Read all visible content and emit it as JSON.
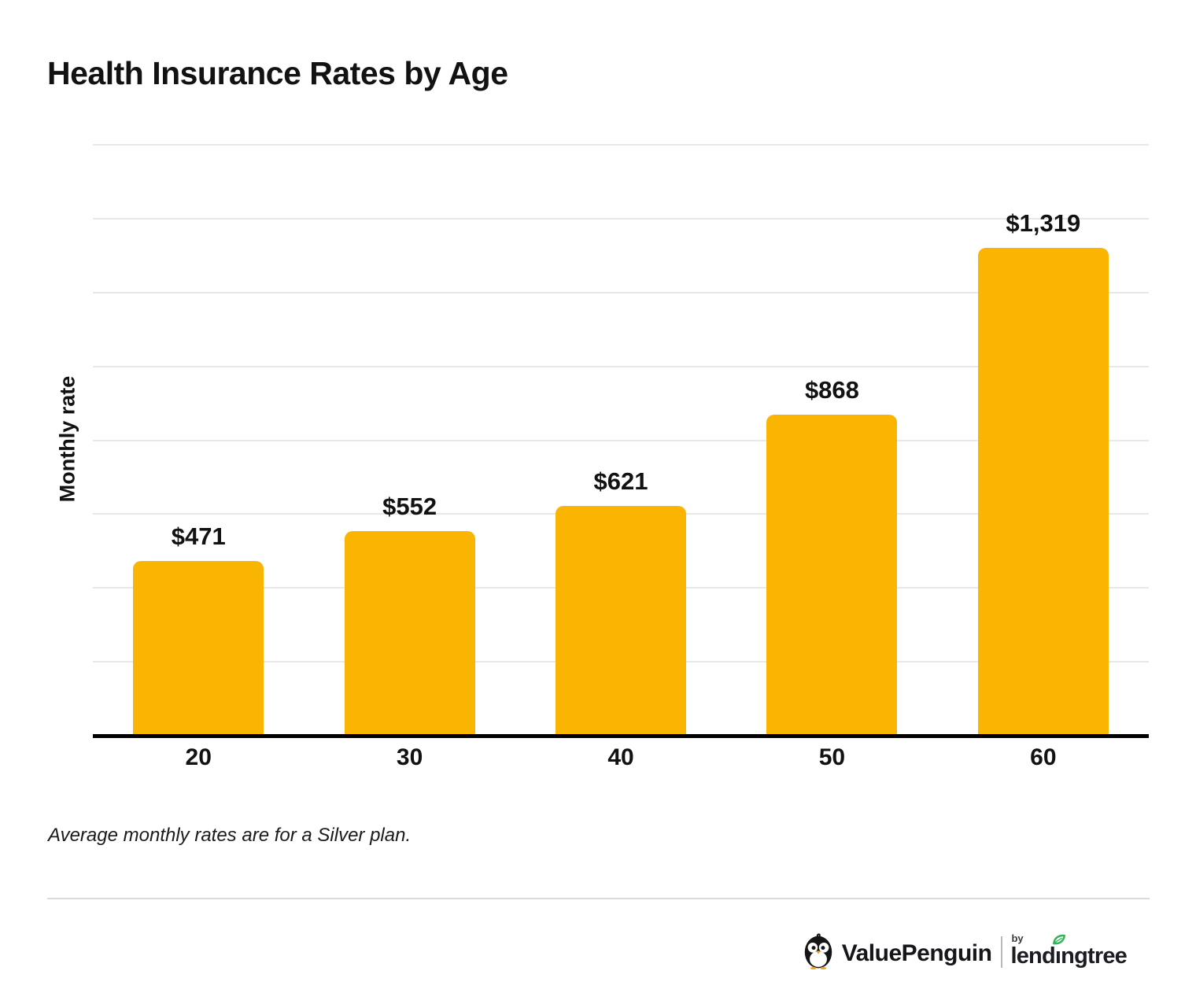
{
  "title": "Health Insurance Rates by Age",
  "chart_data": {
    "type": "bar",
    "categories": [
      "20",
      "30",
      "40",
      "50",
      "60"
    ],
    "values": [
      471,
      552,
      621,
      868,
      1319
    ],
    "value_labels": [
      "$471",
      "$552",
      "$621",
      "$868",
      "$1,319"
    ],
    "title": "Health Insurance Rates by Age",
    "xlabel": "",
    "ylabel": "Monthly rate",
    "ylim": [
      0,
      1600
    ],
    "gridline_step": 200,
    "grid": true,
    "legend": "none",
    "bar_color": "#FAB402"
  },
  "footnote": "Average monthly rates are for a Silver plan.",
  "branding": {
    "valuepenguin": "ValuePenguin",
    "by": "by",
    "lendingtree_pre": "lend",
    "lendingtree_i": "ı",
    "lendingtree_post": "ngtree"
  },
  "colors": {
    "bar": "#FAB402",
    "gridline": "#E8E8E8",
    "axis_line": "#000000",
    "text": "#121212",
    "leaf_green": "#2FB457",
    "divider": "#DBDBDB",
    "beak_orange": "#F5A623"
  }
}
